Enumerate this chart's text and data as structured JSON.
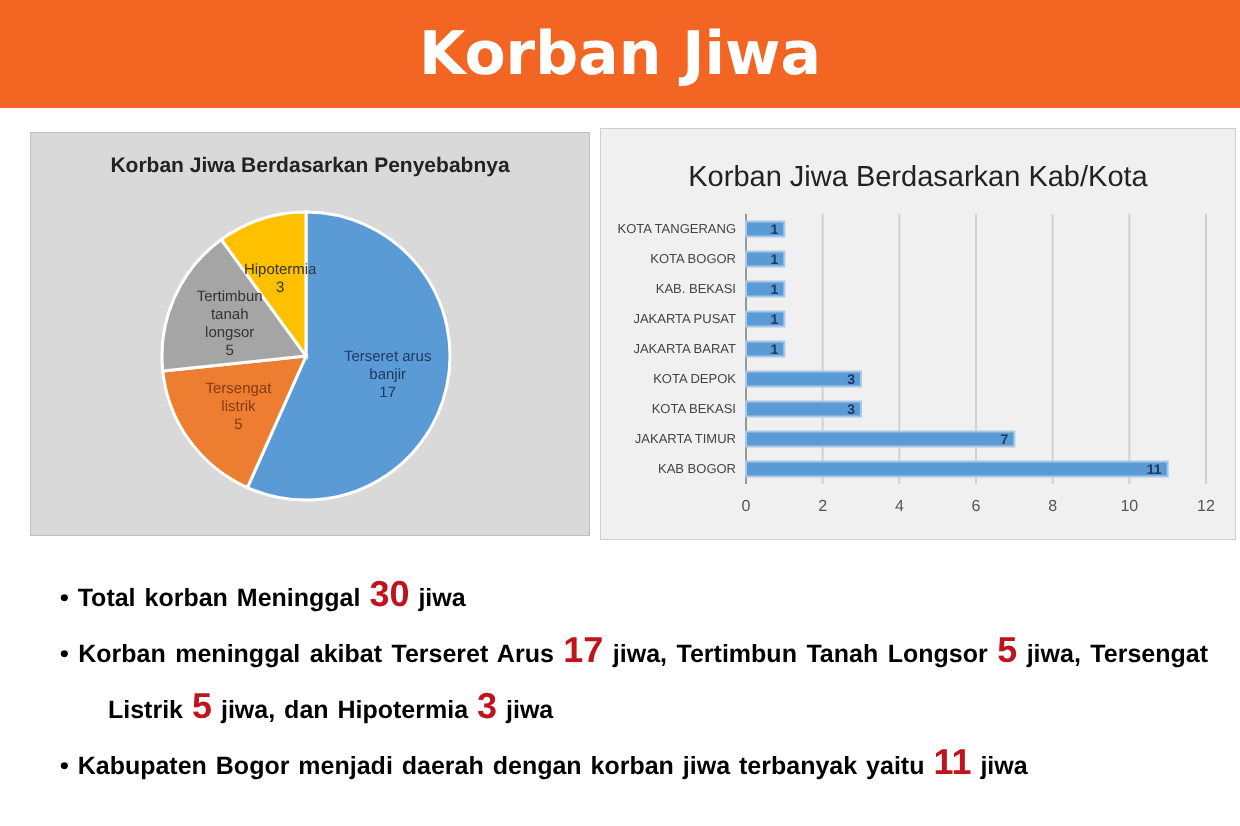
{
  "chart_data": [
    {
      "type": "other",
      "title": "Korban Jiwa",
      "annotations": [
        "• Total korban Meninggal 30 jiwa",
        "• Korban meninggal akibat Terseret Arus 17 jiwa, Tertimbun Tanah Longsor 5 jiwa, Tersengat Listrik 5 jiwa, dan Hipotermia 3 jiwa",
        "• Kabupaten Bogor menjadi daerah dengan korban jiwa terbanyak yaitu 11 jiwa"
      ]
    },
    {
      "type": "pie",
      "title": "Korban Jiwa Berdasarkan Penyebabnya",
      "categories": [
        "Terseret arus banjir",
        "Tersengat listrik",
        "Tertimbun tanah longsor",
        "Hipotermia"
      ],
      "values": [
        17,
        5,
        5,
        3
      ],
      "colors": [
        "#5b9bd5",
        "#ed7d31",
        "#a5a5a5",
        "#ffc000"
      ],
      "data_labels": true
    },
    {
      "type": "bar",
      "orientation": "horizontal",
      "title": "Korban Jiwa Berdasarkan Kab/Kota",
      "categories": [
        "KOTA TANGERANG",
        "KOTA BOGOR",
        "KAB. BEKASI",
        "JAKARTA PUSAT",
        "JAKARTA BARAT",
        "KOTA DEPOK",
        "KOTA BEKASI",
        "JAKARTA TIMUR",
        "KAB BOGOR"
      ],
      "values": [
        1,
        1,
        1,
        1,
        1,
        3,
        3,
        7,
        11
      ],
      "color": "#5b9bd5",
      "xlim": [
        0,
        12
      ],
      "xticks": [
        0,
        2,
        4,
        6,
        8,
        10,
        12
      ],
      "grid": "x",
      "data_labels": true
    }
  ]
}
